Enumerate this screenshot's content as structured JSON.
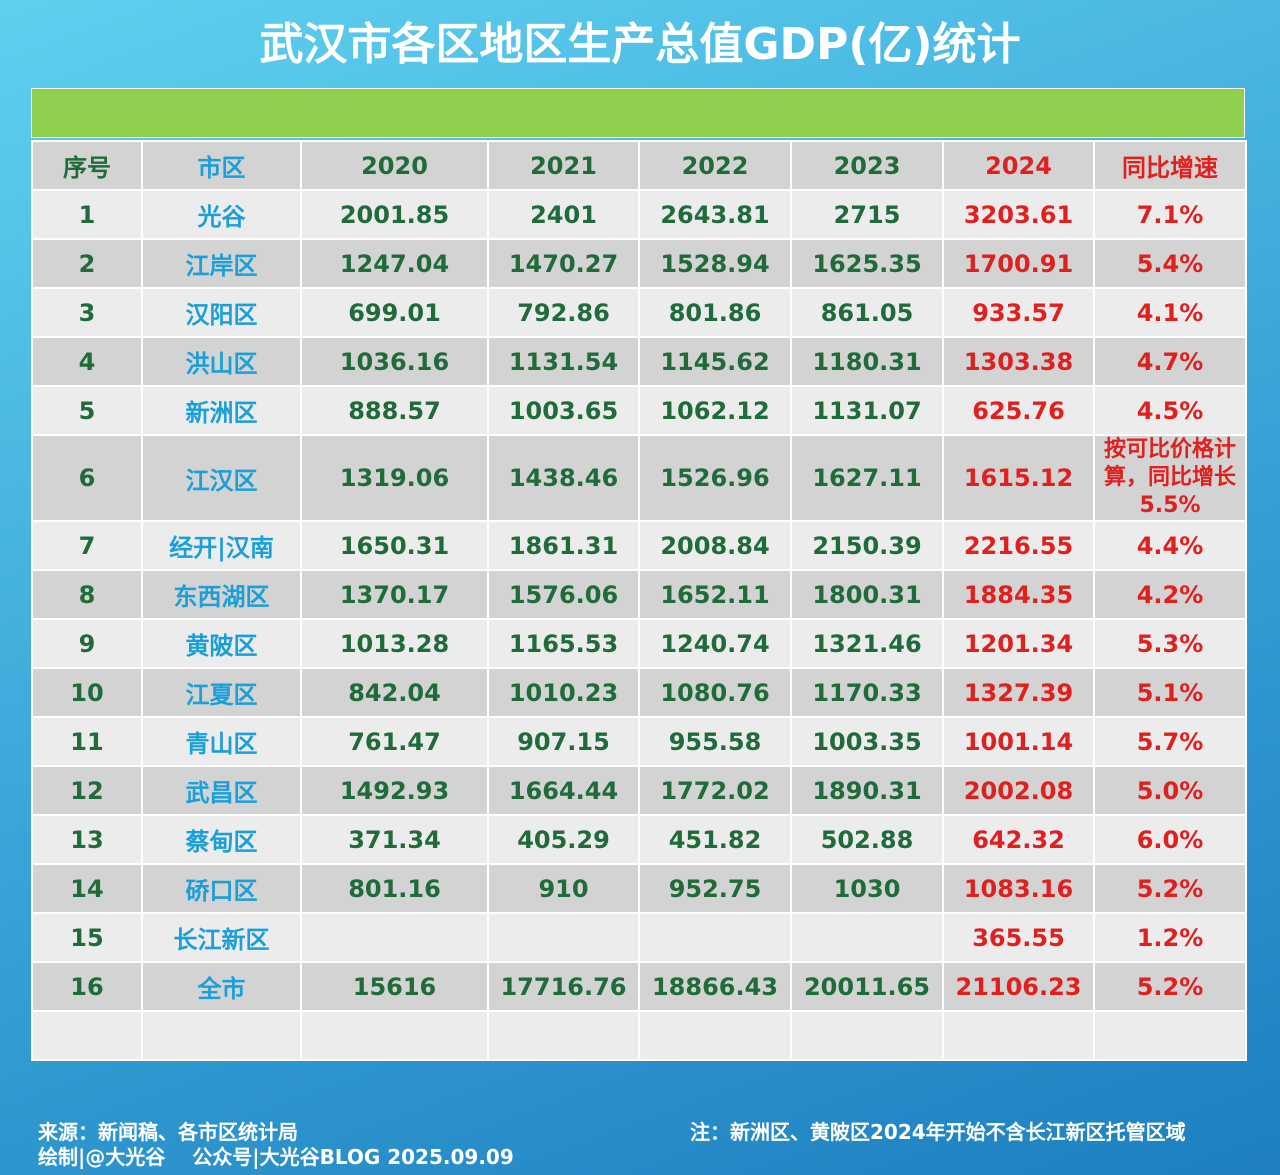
{
  "header": {
    "title": "武汉市各区地区生产总值GDP(亿)统计"
  },
  "table": {
    "columns": [
      "序号",
      "市区",
      "2020",
      "2021",
      "2022",
      "2023",
      "2024",
      "同比增速"
    ],
    "rows": [
      [
        "1",
        "光谷",
        "2001.85",
        "2401",
        "2643.81",
        "2715",
        "3203.61",
        "7.1%"
      ],
      [
        "2",
        "江岸区",
        "1247.04",
        "1470.27",
        "1528.94",
        "1625.35",
        "1700.91",
        "5.4%"
      ],
      [
        "3",
        "汉阳区",
        "699.01",
        "792.86",
        "801.86",
        "861.05",
        "933.57",
        "4.1%"
      ],
      [
        "4",
        "洪山区",
        "1036.16",
        "1131.54",
        "1145.62",
        "1180.31",
        "1303.38",
        "4.7%"
      ],
      [
        "5",
        "新洲区",
        "888.57",
        "1003.65",
        "1062.12",
        "1131.07",
        "625.76",
        "4.5%"
      ],
      [
        "6",
        "江汉区",
        "1319.06",
        "1438.46",
        "1526.96",
        "1627.11",
        "1615.12",
        "按可比价格计算，同比增长5.5%"
      ],
      [
        "7",
        "经开|汉南",
        "1650.31",
        "1861.31",
        "2008.84",
        "2150.39",
        "2216.55",
        "4.4%"
      ],
      [
        "8",
        "东西湖区",
        "1370.17",
        "1576.06",
        "1652.11",
        "1800.31",
        "1884.35",
        "4.2%"
      ],
      [
        "9",
        "黄陂区",
        "1013.28",
        "1165.53",
        "1240.74",
        "1321.46",
        "1201.34",
        "5.3%"
      ],
      [
        "10",
        "江夏区",
        "842.04",
        "1010.23",
        "1080.76",
        "1170.33",
        "1327.39",
        "5.1%"
      ],
      [
        "11",
        "青山区",
        "761.47",
        "907.15",
        "955.58",
        "1003.35",
        "1001.14",
        "5.7%"
      ],
      [
        "12",
        "武昌区",
        "1492.93",
        "1664.44",
        "1772.02",
        "1890.31",
        "2002.08",
        "5.0%"
      ],
      [
        "13",
        "蔡甸区",
        "371.34",
        "405.29",
        "451.82",
        "502.88",
        "642.32",
        "6.0%"
      ],
      [
        "14",
        "硚口区",
        "801.16",
        "910",
        "952.75",
        "1030",
        "1083.16",
        "5.2%"
      ],
      [
        "15",
        "长江新区",
        null,
        null,
        null,
        null,
        "365.55",
        "1.2%"
      ],
      [
        "16",
        "全市",
        "15616",
        "17716.76",
        "18866.43",
        "20011.65",
        "21106.23",
        "5.2%"
      ]
    ]
  },
  "footer": {
    "source": "来源：新闻稿、各市区统计局",
    "credit": "绘制|@大光谷　 公众号|大光谷BLOG  2025.09.09",
    "note": "注：新洲区、黄陂区2024年开始不含长江新区托管区域"
  }
}
